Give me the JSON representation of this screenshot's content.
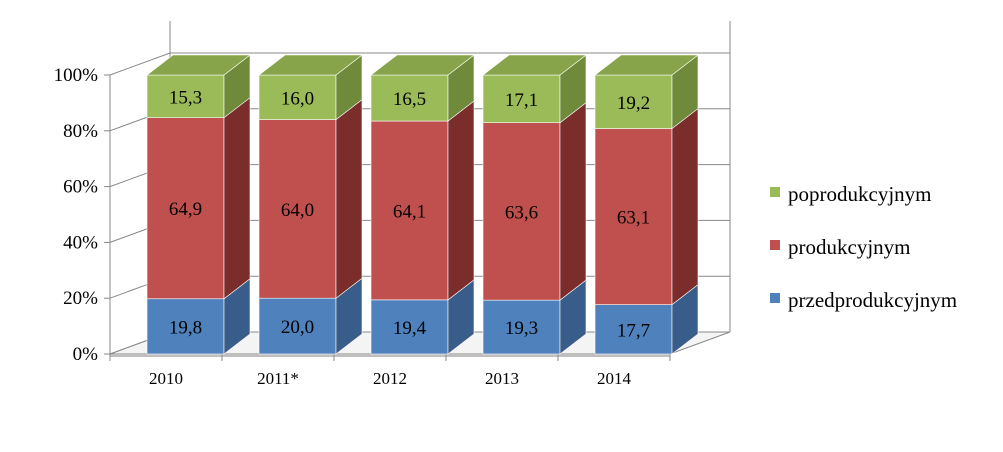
{
  "chart_data": {
    "type": "bar",
    "stacked": true,
    "three_d": true,
    "categories": [
      "2010",
      "2011*",
      "2012",
      "2013",
      "2014"
    ],
    "series": [
      {
        "name": "przedprodukcyjnym",
        "values": [
          19.8,
          20.0,
          19.4,
          19.3,
          17.7
        ],
        "labels": [
          "19,8",
          "20,0",
          "19,4",
          "19,3",
          "17,7"
        ]
      },
      {
        "name": "produkcyjnym",
        "values": [
          64.9,
          64.0,
          64.1,
          63.6,
          63.1
        ],
        "labels": [
          "64,9",
          "64,0",
          "64,1",
          "63,6",
          "63,1"
        ]
      },
      {
        "name": "poprodukcyjnym",
        "values": [
          15.3,
          16.0,
          16.5,
          17.1,
          19.2
        ],
        "labels": [
          "15,3",
          "16,0",
          "16,5",
          "17,1",
          "19,2"
        ]
      }
    ],
    "y_ticks": [
      "0%",
      "20%",
      "40%",
      "60%",
      "80%",
      "100%"
    ],
    "ylim": [
      0,
      100
    ],
    "grid": true,
    "legend_position": "right",
    "legend_order": [
      "poprodukcyjnym",
      "produkcyjnym",
      "przedprodukcyjnym"
    ],
    "colors": {
      "przedprodukcyjnym": {
        "front": "#4f81bd",
        "side": "#385d8a",
        "top": "#6f97c9"
      },
      "produkcyjnym": {
        "front": "#c0504d",
        "side": "#7b2d2b",
        "top": "#cd6b68"
      },
      "poprodukcyjnym": {
        "front": "#9bbb59",
        "side": "#6f8a3a",
        "top": "#87a44a"
      }
    }
  }
}
